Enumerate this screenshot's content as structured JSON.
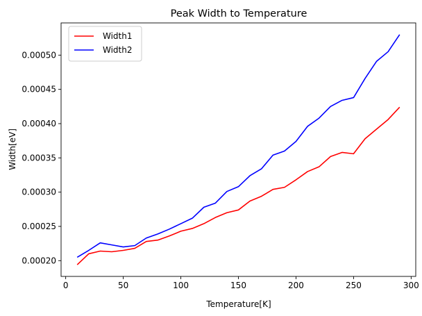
{
  "chart_data": {
    "type": "line",
    "title": "Peak Width to Temperature",
    "xlabel": "Temperature[K]",
    "ylabel": "Width[eV]",
    "xlim": [
      -4,
      304
    ],
    "ylim": [
      0.000177,
      0.000547
    ],
    "xticks": [
      0,
      50,
      100,
      150,
      200,
      250,
      300
    ],
    "xtick_labels": [
      "0",
      "50",
      "100",
      "150",
      "200",
      "250",
      "300"
    ],
    "yticks": [
      0.0002,
      0.00025,
      0.0003,
      0.00035,
      0.0004,
      0.00045,
      0.0005
    ],
    "ytick_labels": [
      "0.00020",
      "0.00025",
      "0.00030",
      "0.00035",
      "0.00040",
      "0.00045",
      "0.00050"
    ],
    "grid": false,
    "legend_position": "top-left",
    "x": [
      10,
      20,
      30,
      40,
      50,
      60,
      70,
      80,
      90,
      100,
      110,
      120,
      130,
      140,
      150,
      160,
      170,
      180,
      190,
      200,
      210,
      220,
      230,
      240,
      250,
      260,
      270,
      280,
      290
    ],
    "series": [
      {
        "name": "Width1",
        "color": "#ff0000",
        "values": [
          0.000194,
          0.00021,
          0.000214,
          0.000213,
          0.000215,
          0.000218,
          0.000228,
          0.00023,
          0.000236,
          0.000243,
          0.000247,
          0.000254,
          0.000263,
          0.00027,
          0.000274,
          0.000287,
          0.000294,
          0.000304,
          0.000307,
          0.000318,
          0.00033,
          0.000337,
          0.000352,
          0.000358,
          0.000356,
          0.000378,
          0.000392,
          0.000406,
          0.000424
        ]
      },
      {
        "name": "Width2",
        "color": "#0000ff",
        "values": [
          0.000205,
          0.000215,
          0.000226,
          0.000223,
          0.00022,
          0.000222,
          0.000233,
          0.000239,
          0.000246,
          0.000254,
          0.000262,
          0.000278,
          0.000284,
          0.000301,
          0.000308,
          0.000324,
          0.000334,
          0.000354,
          0.00036,
          0.000374,
          0.000396,
          0.000408,
          0.000425,
          0.000434,
          0.000438,
          0.000466,
          0.000491,
          0.000505,
          0.00053
        ]
      }
    ]
  }
}
